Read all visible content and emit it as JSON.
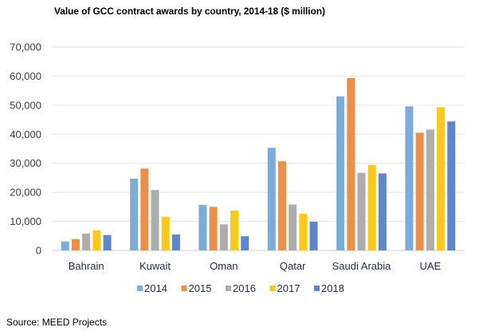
{
  "chart_data": {
    "type": "bar",
    "title": "Value of GCC contract awards by country, 2014-18 ($ million)",
    "xlabel": "",
    "ylabel": "",
    "categories": [
      "Bahrain",
      "Kuwait",
      "Oman",
      "Qatar",
      "Saudi Arabia",
      "UAE"
    ],
    "series": [
      {
        "name": "2014",
        "color": "#7AADDC",
        "values": [
          3100,
          24700,
          15700,
          35300,
          53000,
          49600
        ]
      },
      {
        "name": "2015",
        "color": "#ED8F47",
        "values": [
          3900,
          28200,
          15000,
          30700,
          59300,
          40500
        ]
      },
      {
        "name": "2016",
        "color": "#ADADAD",
        "values": [
          5800,
          20800,
          9000,
          15800,
          26700,
          41600
        ]
      },
      {
        "name": "2017",
        "color": "#FDC911",
        "values": [
          6900,
          11600,
          13700,
          12600,
          29400,
          49300
        ]
      },
      {
        "name": "2018",
        "color": "#5E86CC",
        "values": [
          5300,
          5500,
          4900,
          9900,
          26500,
          44400
        ]
      }
    ],
    "ylim": [
      0,
      70000
    ],
    "yticks": [
      0,
      10000,
      20000,
      30000,
      40000,
      50000,
      60000,
      70000
    ],
    "ytick_labels": [
      "0",
      "10,000",
      "20,000",
      "30,000",
      "40,000",
      "50,000",
      "60,000",
      "70,000"
    ],
    "grid": true,
    "legend_position": "bottom"
  },
  "source": "Source: MEED Projects"
}
